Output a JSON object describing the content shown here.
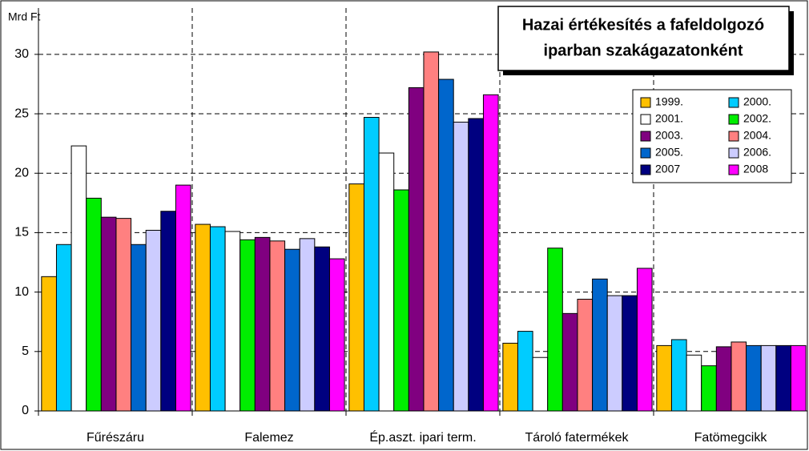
{
  "chart_data": {
    "type": "bar",
    "title": [
      "Hazai értékesítés a fafeldolgozó",
      "iparban szakágazatonként"
    ],
    "y_label": "Mrd Ft",
    "categories": [
      "Fűrészáru",
      "Falemez",
      "Ép.aszt. ipari term.",
      "Tároló fatermékek",
      "Fatömegcikk"
    ],
    "series": [
      {
        "name": "1999.",
        "color": "#ffc000",
        "values": [
          11.3,
          15.7,
          19.1,
          5.7,
          5.5
        ]
      },
      {
        "name": "2000.",
        "color": "#00ccff",
        "values": [
          14.0,
          15.5,
          24.7,
          6.7,
          6.0
        ]
      },
      {
        "name": "2001.",
        "color": "#ffffff",
        "values": [
          22.3,
          15.1,
          21.7,
          4.5,
          4.7
        ]
      },
      {
        "name": "2002.",
        "color": "#00ee00",
        "values": [
          17.9,
          14.4,
          18.6,
          13.7,
          3.8
        ]
      },
      {
        "name": "2003.",
        "color": "#800080",
        "values": [
          16.3,
          14.6,
          27.2,
          8.2,
          5.4
        ]
      },
      {
        "name": "2004.",
        "color": "#ff8080",
        "values": [
          16.2,
          14.3,
          30.2,
          9.4,
          5.8
        ]
      },
      {
        "name": "2005.",
        "color": "#0066cc",
        "values": [
          14.0,
          13.6,
          27.9,
          11.1,
          5.5
        ]
      },
      {
        "name": "2006.",
        "color": "#ccccff",
        "values": [
          15.2,
          14.5,
          24.3,
          9.7,
          5.5
        ]
      },
      {
        "name": "2007",
        "color": "#000080",
        "values": [
          16.8,
          13.8,
          24.6,
          9.7,
          5.5
        ]
      },
      {
        "name": "2008",
        "color": "#ff00ff",
        "values": [
          19.0,
          12.8,
          26.6,
          12.0,
          5.5
        ]
      }
    ],
    "ylim": [
      0,
      33.9
    ],
    "yticks": [
      0,
      5,
      10,
      15,
      20,
      25,
      30
    ],
    "grid": true
  }
}
